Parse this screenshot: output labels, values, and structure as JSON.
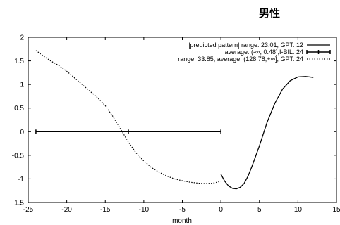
{
  "chart_data": {
    "type": "line",
    "title": "男性",
    "xlabel": "month",
    "ylabel": "",
    "xlim": [
      -25,
      15
    ],
    "ylim": [
      -1.5,
      2
    ],
    "xticks": [
      -25,
      -20,
      -15,
      -10,
      -5,
      0,
      5,
      10,
      15
    ],
    "yticks": [
      -1.5,
      -1,
      -0.5,
      0,
      0.5,
      1,
      1.5,
      2
    ],
    "legend_position": "top-right",
    "series": [
      {
        "name": "|predicted pattern| range: 23.01, GPT: 12",
        "style": "solid",
        "color": "#000000",
        "x": [
          0,
          0.5,
          1,
          1.5,
          2,
          2.5,
          3,
          3.5,
          4,
          5,
          6,
          7,
          8,
          9,
          10,
          11,
          12
        ],
        "y": [
          -0.9,
          -1.05,
          -1.15,
          -1.2,
          -1.21,
          -1.18,
          -1.1,
          -0.95,
          -0.75,
          -0.3,
          0.2,
          0.6,
          0.9,
          1.08,
          1.16,
          1.17,
          1.15
        ]
      },
      {
        "name": "average: (-∞, 0.48],I-BIL: 24",
        "style": "errorbar",
        "color": "#000000",
        "x": [
          -12
        ],
        "y": [
          0
        ],
        "xerr_low": [
          -24
        ],
        "xerr_high": [
          0
        ]
      },
      {
        "name": "range: 33.85, average: (128.78,+∞], GPT: 24",
        "style": "dotted",
        "color": "#000000",
        "x": [
          -24,
          -23,
          -22,
          -21,
          -20,
          -19,
          -18,
          -17,
          -16,
          -15,
          -14,
          -13,
          -12,
          -11,
          -10,
          -9,
          -8,
          -7,
          -6,
          -5,
          -4,
          -3,
          -2,
          -1,
          0
        ],
        "y": [
          1.72,
          1.6,
          1.49,
          1.4,
          1.28,
          1.14,
          1.0,
          0.86,
          0.72,
          0.55,
          0.32,
          0.05,
          -0.22,
          -0.45,
          -0.62,
          -0.76,
          -0.86,
          -0.94,
          -1.0,
          -1.04,
          -1.07,
          -1.09,
          -1.1,
          -1.09,
          -1.05
        ]
      }
    ]
  }
}
